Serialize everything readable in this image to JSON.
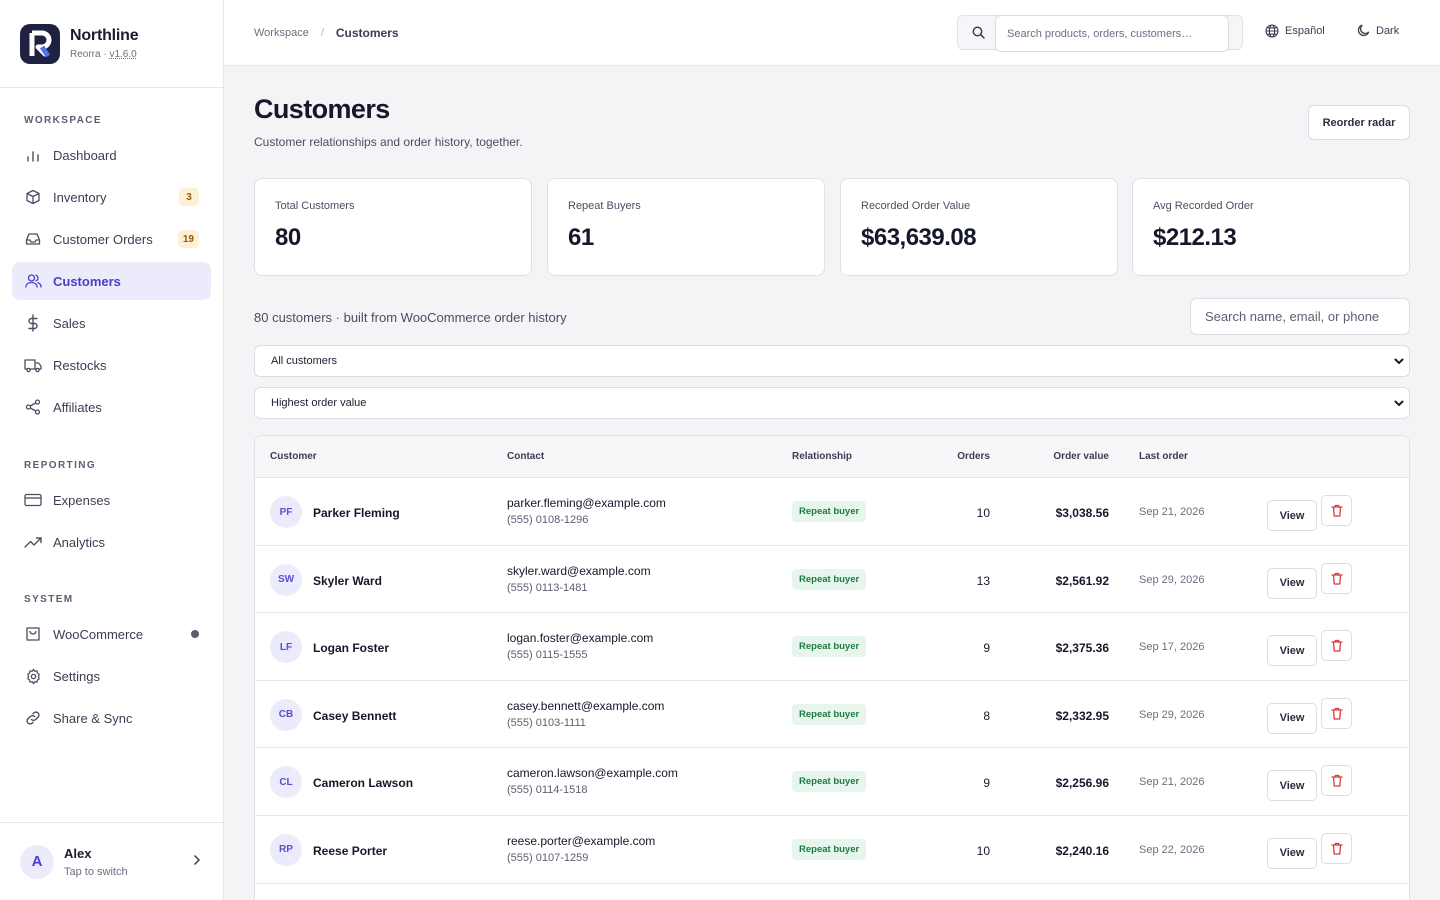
{
  "brand": {
    "name": "Northline",
    "sub": "Reorra · ",
    "version": "v1.6.0"
  },
  "sidebar": {
    "sections": {
      "workspace": "WORKSPACE",
      "reporting": "REPORTING",
      "system": "SYSTEM"
    },
    "items": [
      {
        "label": "Dashboard",
        "icon": "bar-chart-icon"
      },
      {
        "label": "Inventory",
        "icon": "box-icon",
        "badge": "3"
      },
      {
        "label": "Customer Orders",
        "icon": "inbox-icon",
        "badge": "19"
      },
      {
        "label": "Customers",
        "icon": "users-icon",
        "active": true
      },
      {
        "label": "Sales",
        "icon": "dollar-icon"
      },
      {
        "label": "Restocks",
        "icon": "truck-icon"
      },
      {
        "label": "Affiliates",
        "icon": "share-icon"
      },
      {
        "label": "Expenses",
        "icon": "credit-card-icon"
      },
      {
        "label": "Analytics",
        "icon": "trend-icon"
      },
      {
        "label": "WooCommerce",
        "icon": "bag-icon"
      },
      {
        "label": "Settings",
        "icon": "gear-icon"
      },
      {
        "label": "Share & Sync",
        "icon": "link-icon"
      }
    ]
  },
  "user": {
    "initial": "A",
    "name": "Alex",
    "sub": "Tap to switch"
  },
  "topbar": {
    "breadcrumb": {
      "root": "Workspace",
      "sep": "/",
      "current": "Customers"
    },
    "search_placeholder": "Search products, orders, customers…",
    "language": "Español",
    "theme": "Dark"
  },
  "page": {
    "title": "Customers",
    "subtitle": "Customer relationships and order history, together.",
    "reorder_label": "Reorder radar"
  },
  "stats": [
    {
      "label": "Total Customers",
      "value": "80"
    },
    {
      "label": "Repeat Buyers",
      "value": "61"
    },
    {
      "label": "Recorded Order Value",
      "value": "$63,639.08"
    },
    {
      "label": "Avg Recorded Order",
      "value": "$212.13"
    }
  ],
  "list": {
    "count_line": "80 customers · built from WooCommerce order history",
    "search_placeholder": "Search name, email, or phone",
    "filter_selected": "All customers",
    "sort_selected": "Highest order value"
  },
  "table": {
    "headers": {
      "customer": "Customer",
      "contact": "Contact",
      "relationship": "Relationship",
      "orders": "Orders",
      "value": "Order value",
      "last": "Last order"
    },
    "view_label": "View",
    "rows": [
      {
        "initials": "PF",
        "name": "Parker Fleming",
        "email": "parker.fleming@example.com",
        "phone": "(555) 0108-1296",
        "relationship": "Repeat buyer",
        "orders": "10",
        "value": "$3,038.56",
        "last": "Sep 21, 2026"
      },
      {
        "initials": "SW",
        "name": "Skyler Ward",
        "email": "skyler.ward@example.com",
        "phone": "(555) 0113-1481",
        "relationship": "Repeat buyer",
        "orders": "13",
        "value": "$2,561.92",
        "last": "Sep 29, 2026"
      },
      {
        "initials": "LF",
        "name": "Logan Foster",
        "email": "logan.foster@example.com",
        "phone": "(555) 0115-1555",
        "relationship": "Repeat buyer",
        "orders": "9",
        "value": "$2,375.36",
        "last": "Sep 17, 2026"
      },
      {
        "initials": "CB",
        "name": "Casey Bennett",
        "email": "casey.bennett@example.com",
        "phone": "(555) 0103-1111",
        "relationship": "Repeat buyer",
        "orders": "8",
        "value": "$2,332.95",
        "last": "Sep 29, 2026"
      },
      {
        "initials": "CL",
        "name": "Cameron Lawson",
        "email": "cameron.lawson@example.com",
        "phone": "(555) 0114-1518",
        "relationship": "Repeat buyer",
        "orders": "9",
        "value": "$2,256.96",
        "last": "Sep 21, 2026"
      },
      {
        "initials": "RP",
        "name": "Reese Porter",
        "email": "reese.porter@example.com",
        "phone": "(555) 0107-1259",
        "relationship": "Repeat buyer",
        "orders": "10",
        "value": "$2,240.16",
        "last": "Sep 22, 2026"
      }
    ]
  },
  "colors": {
    "accent": "#4b3fc8",
    "accent_bg": "#ecebfb",
    "success": "#1e7a44",
    "danger": "#d63a3a"
  }
}
